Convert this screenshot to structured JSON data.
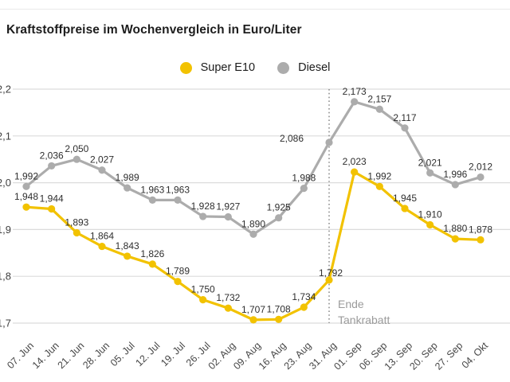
{
  "title": "Kraftstoffpreise im Wochenvergleich in Euro/Liter",
  "legend": {
    "super_e10": "Super E10",
    "diesel": "Diesel"
  },
  "annotation": {
    "line1": "Ende",
    "line2": "Tankrabatt"
  },
  "colors": {
    "super_e10": "#F2C200",
    "diesel": "#ACACAC",
    "grid": "#DCDCDC",
    "dashed_line": "#8F8F8F",
    "title_text": "#1D1D1D",
    "value_label_text": "#2E2E2E",
    "axis_label_text": "#474747",
    "annotation_text": "#9B9B9B"
  },
  "chart_data": {
    "type": "line",
    "title": "Kraftstoffpreise im Wochenvergleich in Euro/Liter",
    "categories": [
      "07. Jun",
      "14. Jun",
      "21. Jun",
      "28. Jun",
      "05. Jul",
      "12. Jul",
      "19. Jul",
      "26. Jul",
      "02. Aug",
      "09. Aug",
      "16. Aug",
      "23. Aug",
      "31. Aug",
      "01. Sep",
      "06. Sep",
      "13. Sep",
      "20. Sep",
      "27. Sep",
      "04. Okt"
    ],
    "series": [
      {
        "name": "Super E10",
        "color": "#F2C200",
        "values": [
          1.948,
          1.944,
          1.893,
          1.864,
          1.843,
          1.826,
          1.789,
          1.75,
          1.732,
          1.707,
          1.708,
          1.734,
          1.792,
          2.023,
          1.992,
          1.945,
          1.91,
          1.88,
          1.878
        ]
      },
      {
        "name": "Diesel",
        "color": "#ACACAC",
        "values": [
          1.992,
          2.036,
          2.05,
          2.027,
          1.989,
          1.963,
          1.963,
          1.928,
          1.927,
          1.89,
          1.925,
          1.988,
          2.086,
          2.173,
          2.157,
          2.117,
          2.021,
          1.996,
          2.012
        ]
      }
    ],
    "xlabel": "",
    "ylabel": "",
    "ylim": [
      1.7,
      2.2
    ],
    "yticks": [
      2.2,
      2.1,
      2.0,
      1.9,
      1.8,
      1.7
    ],
    "ytick_labels": [
      "2,2",
      "2,1",
      "2,0",
      "1,9",
      "1,8",
      "1,7"
    ],
    "value_label_decimal_separator": ",",
    "grid": true,
    "legend_position": "top-center",
    "annotation": {
      "text": [
        "Ende",
        "Tankrabatt"
      ],
      "at_category": "31. Aug"
    },
    "label_offsets": {
      "Diesel": {
        "12": [
          -47,
          8
        ]
      },
      "Super E10": {
        "12": [
          2,
          4
        ]
      }
    }
  }
}
